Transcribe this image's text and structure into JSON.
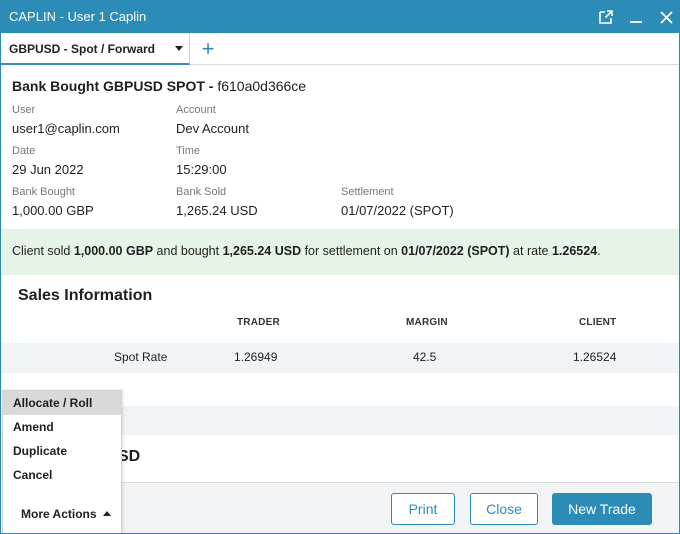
{
  "window": {
    "title": "CAPLIN - User 1 Caplin",
    "icons": [
      "popout-icon",
      "minimize-icon",
      "close-icon"
    ]
  },
  "tabs": [
    {
      "label": "GBPUSD - Spot / Forward"
    }
  ],
  "trade": {
    "title_bold": "Bank Bought GBPUSD SPOT - ",
    "title_id": "f610a0d366ce",
    "fields": {
      "user": {
        "label": "User",
        "value": "user1@caplin.com"
      },
      "account": {
        "label": "Account",
        "value": "Dev Account"
      },
      "date": {
        "label": "Date",
        "value": "29 Jun 2022"
      },
      "time": {
        "label": "Time",
        "value": "15:29:00"
      },
      "bank_bought": {
        "label": "Bank Bought",
        "value": "1,000.00 GBP"
      },
      "bank_sold": {
        "label": "Bank Sold",
        "value": "1,265.24 USD"
      },
      "settlement": {
        "label": "Settlement",
        "value": "01/07/2022 (SPOT)"
      }
    }
  },
  "summary": {
    "t1": "Client sold ",
    "amount_sold": "1,000.00 GBP",
    "t2": " and bought ",
    "amount_bought": "1,265.24 USD",
    "t3": " for settlement on ",
    "settlement": "01/07/2022 (SPOT)",
    "t4": " at rate ",
    "rate": "1.26524",
    "t5": "."
  },
  "sales": {
    "title": "Sales Information",
    "columns": [
      "TRADER",
      "MARGIN",
      "CLIENT"
    ],
    "rows": [
      {
        "label": "Spot Rate",
        "trader": "1.26949",
        "margin": "42.5",
        "client": "1.26524"
      }
    ]
  },
  "section2": {
    "title_fragment": "SD"
  },
  "menu": {
    "items": [
      "Allocate / Roll",
      "Amend",
      "Duplicate",
      "Cancel"
    ],
    "more_actions": "More Actions"
  },
  "footer": {
    "print": "Print",
    "close": "Close",
    "new_trade": "New Trade"
  },
  "colors": {
    "accent": "#2b8cb8",
    "summary_bg": "#e6f4e8"
  }
}
